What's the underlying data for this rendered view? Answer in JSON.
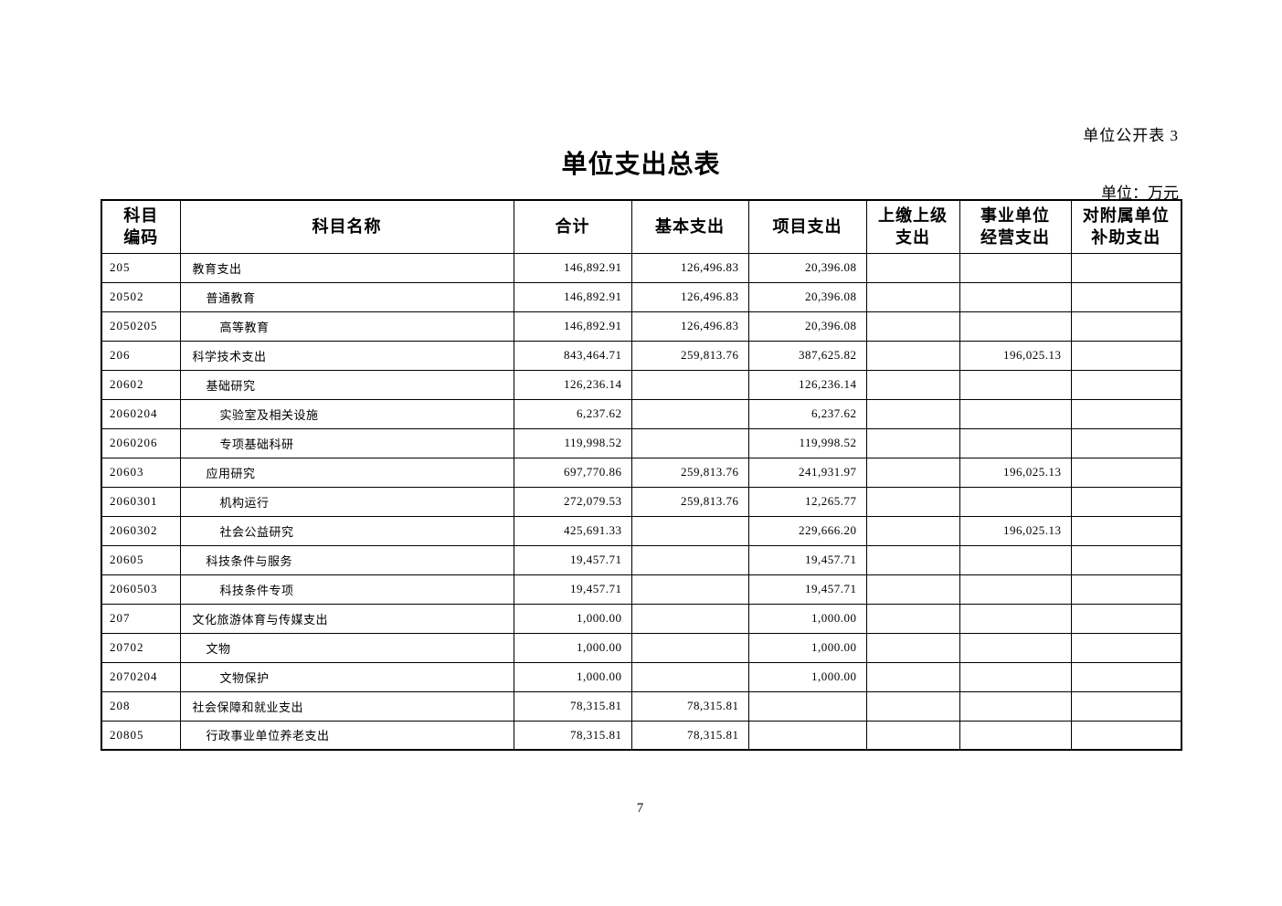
{
  "page": {
    "corner_label": "单位公开表 3",
    "title": "单位支出总表",
    "unit_label": "单位：万元",
    "page_number": "7"
  },
  "table": {
    "columns": [
      {
        "key": "code",
        "label": "科目\n编码"
      },
      {
        "key": "name",
        "label": "科目名称"
      },
      {
        "key": "total",
        "label": "合计"
      },
      {
        "key": "basic",
        "label": "基本支出"
      },
      {
        "key": "project",
        "label": "项目支出"
      },
      {
        "key": "upper",
        "label": "上缴上级\n支出"
      },
      {
        "key": "operating",
        "label": "事业单位\n经营支出"
      },
      {
        "key": "subsidy",
        "label": "对附属单位\n补助支出"
      }
    ],
    "rows": [
      {
        "code": "205",
        "name": "教育支出",
        "indent": 1,
        "total": "146,892.91",
        "basic": "126,496.83",
        "project": "20,396.08",
        "upper": "",
        "operating": "",
        "subsidy": ""
      },
      {
        "code": "20502",
        "name": "普通教育",
        "indent": 2,
        "total": "146,892.91",
        "basic": "126,496.83",
        "project": "20,396.08",
        "upper": "",
        "operating": "",
        "subsidy": ""
      },
      {
        "code": "2050205",
        "name": "高等教育",
        "indent": 3,
        "total": "146,892.91",
        "basic": "126,496.83",
        "project": "20,396.08",
        "upper": "",
        "operating": "",
        "subsidy": ""
      },
      {
        "code": "206",
        "name": "科学技术支出",
        "indent": 1,
        "total": "843,464.71",
        "basic": "259,813.76",
        "project": "387,625.82",
        "upper": "",
        "operating": "196,025.13",
        "subsidy": ""
      },
      {
        "code": "20602",
        "name": "基础研究",
        "indent": 2,
        "total": "126,236.14",
        "basic": "",
        "project": "126,236.14",
        "upper": "",
        "operating": "",
        "subsidy": ""
      },
      {
        "code": "2060204",
        "name": "实验室及相关设施",
        "indent": 3,
        "total": "6,237.62",
        "basic": "",
        "project": "6,237.62",
        "upper": "",
        "operating": "",
        "subsidy": ""
      },
      {
        "code": "2060206",
        "name": "专项基础科研",
        "indent": 3,
        "total": "119,998.52",
        "basic": "",
        "project": "119,998.52",
        "upper": "",
        "operating": "",
        "subsidy": ""
      },
      {
        "code": "20603",
        "name": "应用研究",
        "indent": 2,
        "total": "697,770.86",
        "basic": "259,813.76",
        "project": "241,931.97",
        "upper": "",
        "operating": "196,025.13",
        "subsidy": ""
      },
      {
        "code": "2060301",
        "name": "机构运行",
        "indent": 3,
        "total": "272,079.53",
        "basic": "259,813.76",
        "project": "12,265.77",
        "upper": "",
        "operating": "",
        "subsidy": ""
      },
      {
        "code": "2060302",
        "name": "社会公益研究",
        "indent": 3,
        "total": "425,691.33",
        "basic": "",
        "project": "229,666.20",
        "upper": "",
        "operating": "196,025.13",
        "subsidy": ""
      },
      {
        "code": "20605",
        "name": "科技条件与服务",
        "indent": 2,
        "total": "19,457.71",
        "basic": "",
        "project": "19,457.71",
        "upper": "",
        "operating": "",
        "subsidy": ""
      },
      {
        "code": "2060503",
        "name": "科技条件专项",
        "indent": 3,
        "total": "19,457.71",
        "basic": "",
        "project": "19,457.71",
        "upper": "",
        "operating": "",
        "subsidy": ""
      },
      {
        "code": "207",
        "name": "文化旅游体育与传媒支出",
        "indent": 1,
        "total": "1,000.00",
        "basic": "",
        "project": "1,000.00",
        "upper": "",
        "operating": "",
        "subsidy": ""
      },
      {
        "code": "20702",
        "name": "文物",
        "indent": 2,
        "total": "1,000.00",
        "basic": "",
        "project": "1,000.00",
        "upper": "",
        "operating": "",
        "subsidy": ""
      },
      {
        "code": "2070204",
        "name": "文物保护",
        "indent": 3,
        "total": "1,000.00",
        "basic": "",
        "project": "1,000.00",
        "upper": "",
        "operating": "",
        "subsidy": ""
      },
      {
        "code": "208",
        "name": "社会保障和就业支出",
        "indent": 1,
        "total": "78,315.81",
        "basic": "78,315.81",
        "project": "",
        "upper": "",
        "operating": "",
        "subsidy": ""
      },
      {
        "code": "20805",
        "name": "行政事业单位养老支出",
        "indent": 2,
        "total": "78,315.81",
        "basic": "78,315.81",
        "project": "",
        "upper": "",
        "operating": "",
        "subsidy": ""
      }
    ]
  }
}
